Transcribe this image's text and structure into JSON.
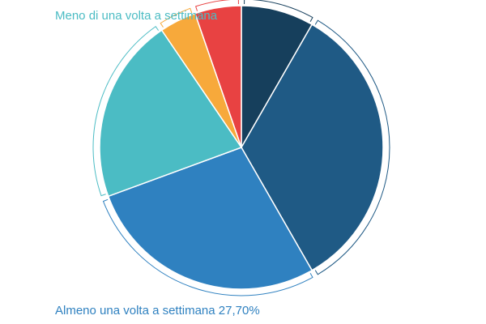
{
  "chart_data": {
    "type": "pie",
    "start_angle_deg": 0,
    "direction": "clockwise",
    "slices": [
      {
        "value": 8.3,
        "color": "#163f5c",
        "label": ""
      },
      {
        "value": 33.4,
        "color": "#1f5a85",
        "label": ""
      },
      {
        "value": 27.7,
        "color": "#2f81c0",
        "label": "Almeno una volta a settimana 27,70%",
        "label_color": "#2f81c0"
      },
      {
        "value": 21.1,
        "color": "#4bbcc4",
        "label": "Meno di una volta a settimana",
        "label_color": "#4bbcc4"
      },
      {
        "value": 4.2,
        "color": "#f7a93b",
        "label": ""
      },
      {
        "value": 5.3,
        "color": "#e84242",
        "label": ""
      }
    ]
  }
}
